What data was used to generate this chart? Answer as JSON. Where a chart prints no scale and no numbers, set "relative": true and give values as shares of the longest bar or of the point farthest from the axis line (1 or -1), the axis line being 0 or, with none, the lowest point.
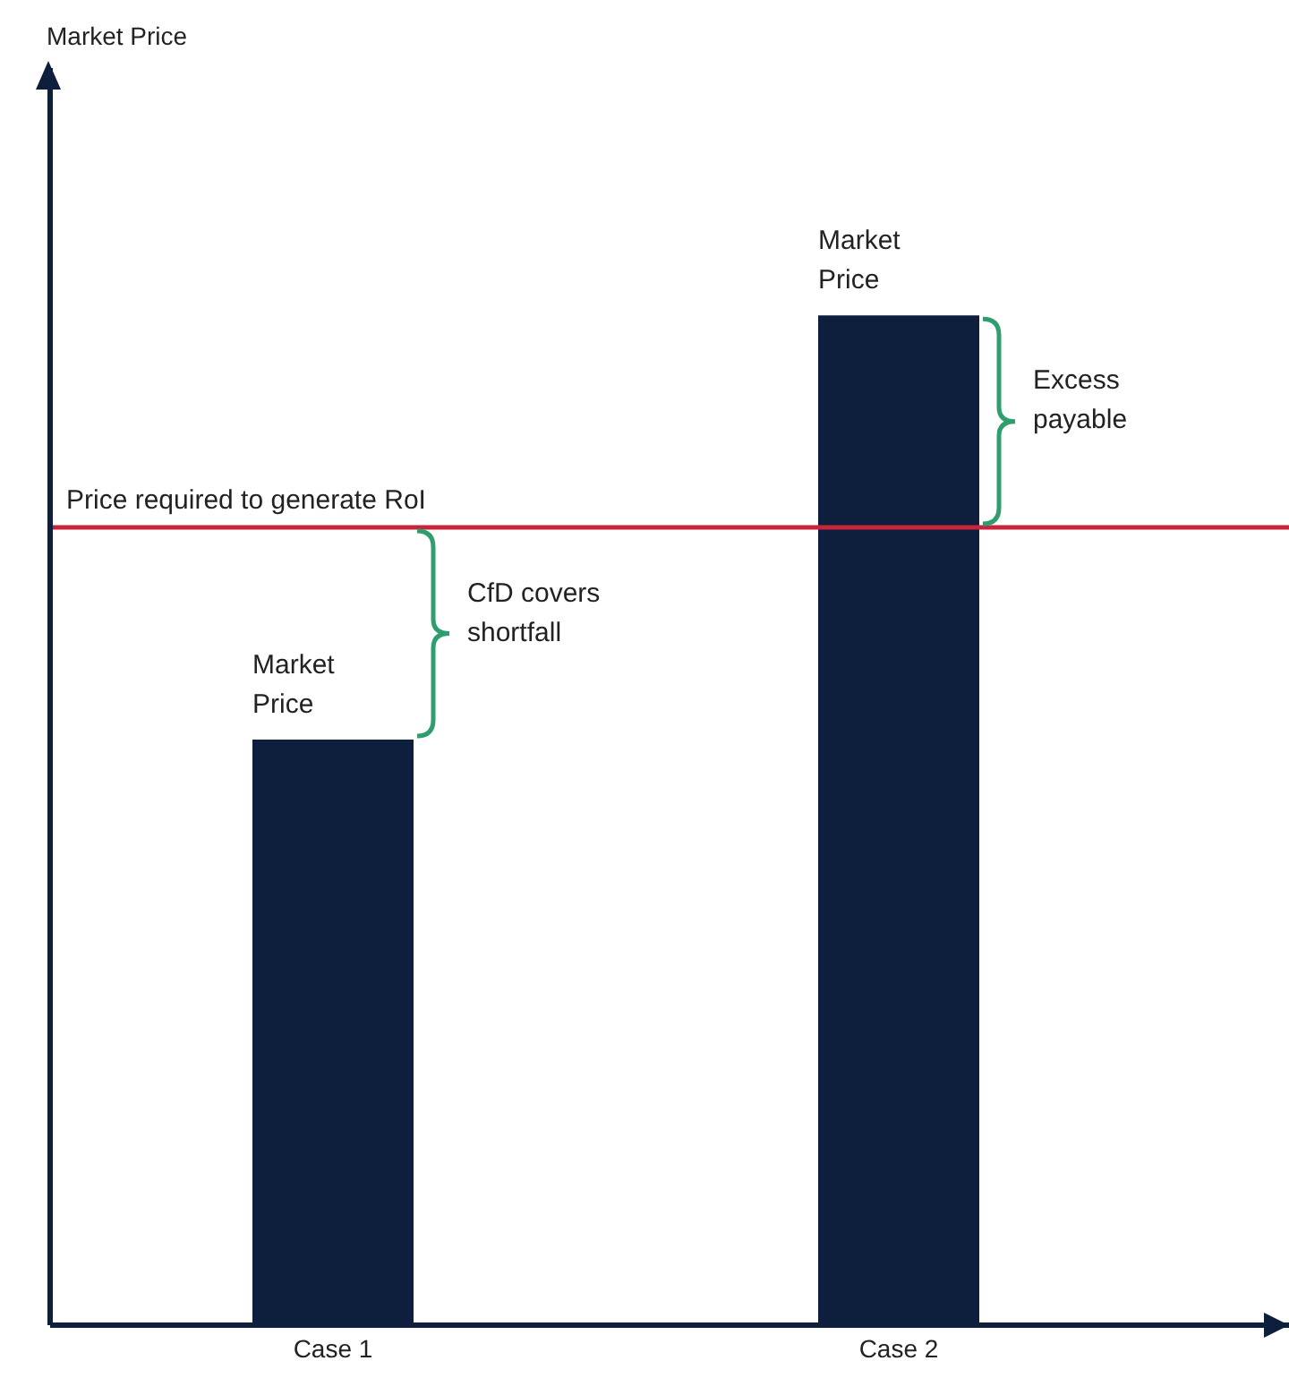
{
  "chart_data": {
    "type": "bar",
    "relative": true,
    "categories": [
      "Case 1",
      "Case 2"
    ],
    "values": [
      0.58,
      1
    ],
    "color": "#0d1f3c",
    "ref_lines": [
      {
        "axis": "y",
        "value": 0.79,
        "label": "Price required to generate RoI",
        "color": "#c8243c"
      }
    ],
    "annotations": [
      {
        "text": "Market Price",
        "x": "Case 1",
        "y": 0.58
      },
      "CfD covers shortfall",
      {
        "text": "Market Price",
        "x": "Case 2",
        "y": 1
      },
      "Excess payable",
      "Market Price"
    ]
  }
}
